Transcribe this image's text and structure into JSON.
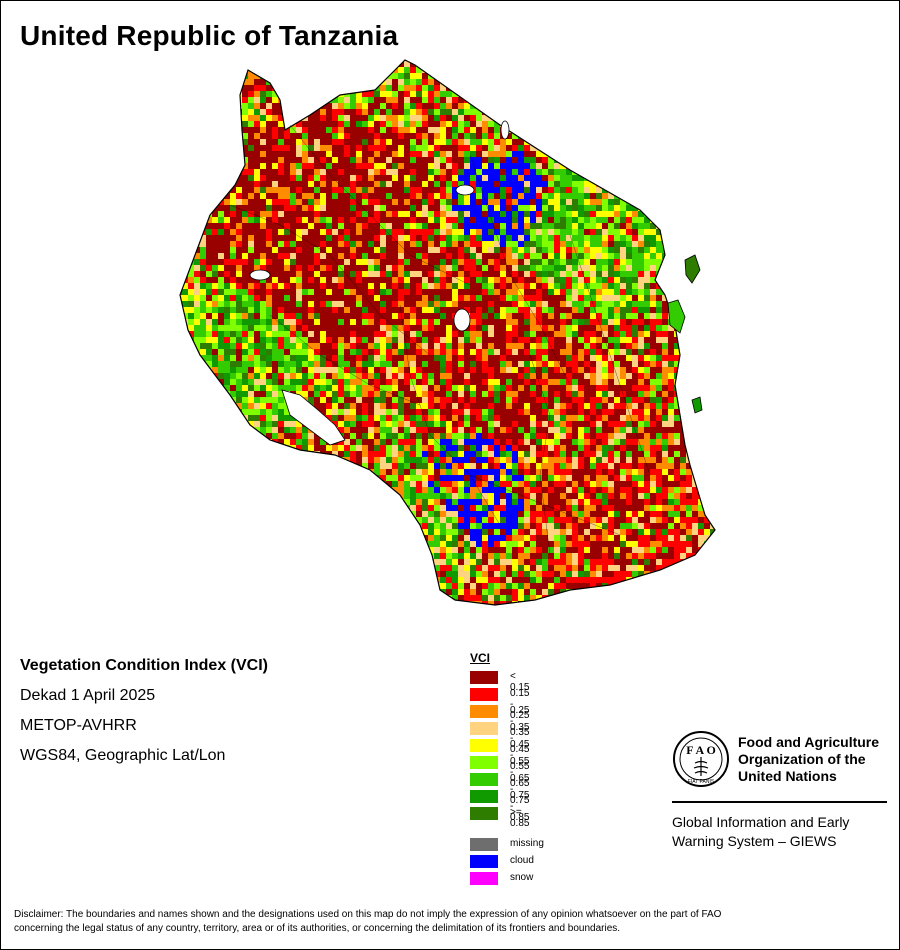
{
  "title": "United Republic of Tanzania",
  "info": {
    "index_name": "Vegetation Condition Index (VCI)",
    "period": "Dekad 1 April 2025",
    "sensor": "METOP-AVHRR",
    "projection": "WGS84, Geographic Lat/Lon"
  },
  "legend": {
    "title": "VCI",
    "classes": [
      {
        "label": "< 0.15",
        "color": "#990000"
      },
      {
        "label": "0.15 - 0.25",
        "color": "#ff0000"
      },
      {
        "label": "0.25 - 0.35",
        "color": "#ff8c00"
      },
      {
        "label": "0.35 - 0.45",
        "color": "#ffd37f"
      },
      {
        "label": "0.45 - 0.55",
        "color": "#ffff00"
      },
      {
        "label": "0.55 - 0.65",
        "color": "#80ff00"
      },
      {
        "label": "0.65 - 0.75",
        "color": "#33cc00"
      },
      {
        "label": "0.75 - 0.85",
        "color": "#119900"
      },
      {
        "label": ">= 0.85",
        "color": "#2e7d00"
      }
    ],
    "other": [
      {
        "label": "missing",
        "color": "#6e6e6e"
      },
      {
        "label": "cloud",
        "color": "#0000ff"
      },
      {
        "label": "snow",
        "color": "#ff00ff"
      }
    ]
  },
  "fao": {
    "name_line1": "Food and Agriculture",
    "name_line2": "Organization of the",
    "name_line3": "United Nations",
    "emblem_text": "FIAT PANIS",
    "giews_line1": "Global Information and Early",
    "giews_line2": "Warning System – GIEWS"
  },
  "disclaimer": {
    "line1": "Disclaimer: The boundaries and names shown and the designations used on this map do not imply the expression of any opinion whatsoever on the part of FAO",
    "line2": "concerning the legal status of any country, territory, area or of its authorities, or concerning the delimitation of its frontiers and boundaries."
  }
}
